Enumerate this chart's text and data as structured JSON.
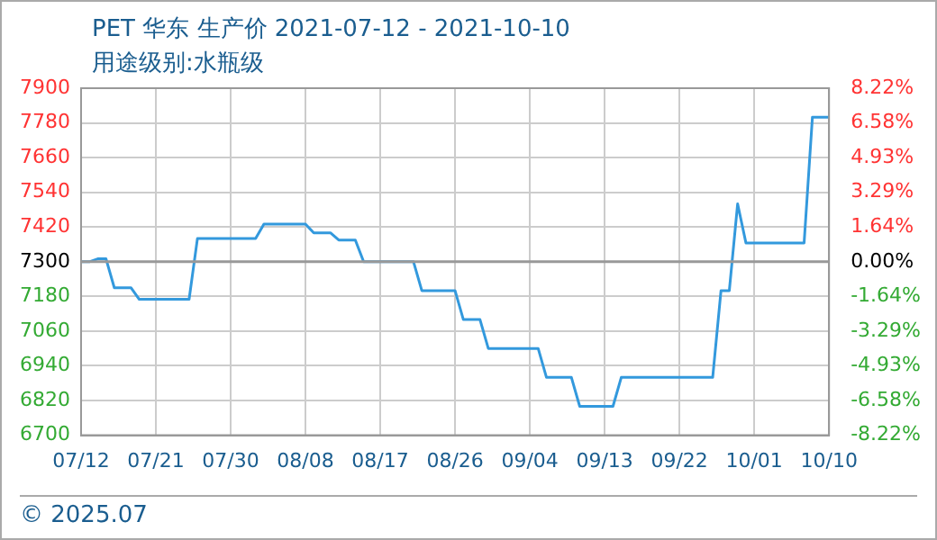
{
  "chart_data": {
    "type": "line",
    "title": "PET 华东 生产价 2021-07-12 - 2021-10-10",
    "subtitle": "用途级别:水瓶级",
    "annotations": [
      "© 2025.07"
    ],
    "x": [
      "2021-07-12",
      "2021-07-13",
      "2021-07-14",
      "2021-07-15",
      "2021-07-16",
      "2021-07-18",
      "2021-07-19",
      "2021-07-25",
      "2021-07-26",
      "2021-08-02",
      "2021-08-03",
      "2021-08-08",
      "2021-08-09",
      "2021-08-11",
      "2021-08-12",
      "2021-08-14",
      "2021-08-15",
      "2021-08-21",
      "2021-08-22",
      "2021-08-26",
      "2021-08-27",
      "2021-08-29",
      "2021-08-30",
      "2021-09-05",
      "2021-09-06",
      "2021-09-09",
      "2021-09-10",
      "2021-09-14",
      "2021-09-15",
      "2021-09-26",
      "2021-09-27",
      "2021-09-28",
      "2021-09-29",
      "2021-09-30",
      "2021-10-07",
      "2021-10-08",
      "2021-10-10"
    ],
    "series": [
      {
        "color": "#3399dd",
        "values": [
          7300,
          7300,
          7310,
          7310,
          7210,
          7210,
          7170,
          7170,
          7380,
          7380,
          7430,
          7430,
          7400,
          7400,
          7375,
          7375,
          7300,
          7300,
          7200,
          7200,
          7100,
          7100,
          7000,
          7000,
          6900,
          6900,
          6800,
          6800,
          6900,
          6900,
          7200,
          7200,
          7500,
          7365,
          7365,
          7800,
          7800
        ]
      }
    ],
    "xlim": [
      "2021-07-12",
      "2021-10-10"
    ],
    "xticks": [
      {
        "value": "2021-07-12",
        "label": "07/12"
      },
      {
        "value": "2021-07-21",
        "label": "07/21"
      },
      {
        "value": "2021-07-30",
        "label": "07/30"
      },
      {
        "value": "2021-08-08",
        "label": "08/08"
      },
      {
        "value": "2021-08-17",
        "label": "08/17"
      },
      {
        "value": "2021-08-26",
        "label": "08/26"
      },
      {
        "value": "2021-09-04",
        "label": "09/04"
      },
      {
        "value": "2021-09-13",
        "label": "09/13"
      },
      {
        "value": "2021-09-22",
        "label": "09/22"
      },
      {
        "value": "2021-10-01",
        "label": "10/01"
      },
      {
        "value": "2021-10-10",
        "label": "10/10"
      }
    ],
    "ylim": [
      6700,
      7900
    ],
    "yticks": [
      6700,
      6820,
      6940,
      7060,
      7180,
      7300,
      7420,
      7540,
      7660,
      7780,
      7900
    ],
    "y2lim": [
      -8.22,
      8.22
    ],
    "y2ticks": [
      {
        "value": -8.22,
        "label": "-8.22%"
      },
      {
        "value": -6.58,
        "label": "-6.58%"
      },
      {
        "value": -4.93,
        "label": "-4.93%"
      },
      {
        "value": -3.29,
        "label": "-3.29%"
      },
      {
        "value": -1.64,
        "label": "-1.64%"
      },
      {
        "value": 0,
        "label": "0.00%"
      },
      {
        "value": 1.64,
        "label": "1.64%"
      },
      {
        "value": 3.29,
        "label": "3.29%"
      },
      {
        "value": 4.93,
        "label": "4.93%"
      },
      {
        "value": 6.58,
        "label": "6.58%"
      },
      {
        "value": 8.22,
        "label": "8.22%"
      }
    ],
    "ref_lines": [
      {
        "axis": "y",
        "value": 7300,
        "color": "#999999"
      }
    ],
    "grid": true
  }
}
